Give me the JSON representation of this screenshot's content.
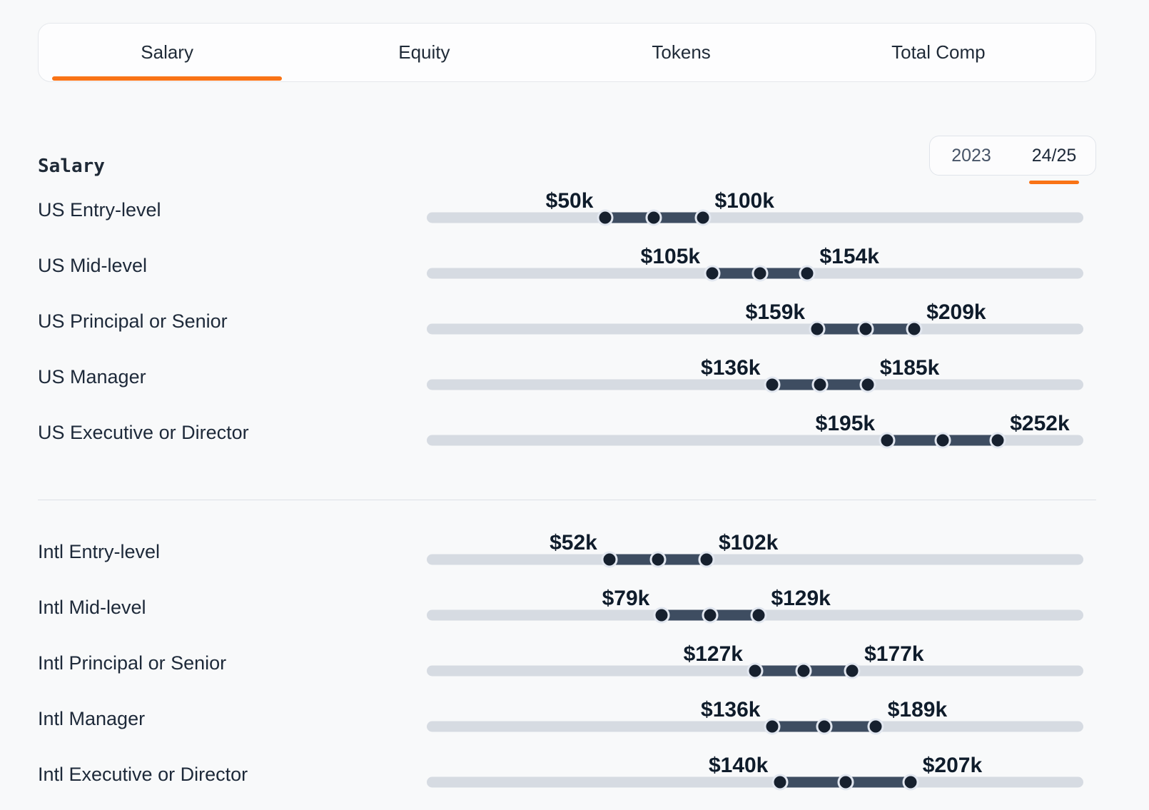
{
  "colors": {
    "accent": "#f97316"
  },
  "tabs": {
    "items": [
      {
        "label": "Salary",
        "active": true
      },
      {
        "label": "Equity",
        "active": false
      },
      {
        "label": "Tokens",
        "active": false
      },
      {
        "label": "Total Comp",
        "active": false
      }
    ]
  },
  "section": {
    "heading": "Salary"
  },
  "year_toggle": {
    "options": [
      {
        "label": "2023",
        "selected": false
      },
      {
        "label": "24/25",
        "selected": true
      }
    ]
  },
  "slider_axis": {
    "min": -42,
    "max": 296,
    "unit": "$k"
  },
  "chart_data": {
    "type": "table",
    "title": "Salary",
    "groups": [
      {
        "name": "US",
        "rows": [
          {
            "label": "US Entry-level",
            "min": 50,
            "max": 100,
            "min_label": "$50k",
            "max_label": "$100k"
          },
          {
            "label": "US Mid-level",
            "min": 105,
            "max": 154,
            "min_label": "$105k",
            "max_label": "$154k"
          },
          {
            "label": "US Principal or Senior",
            "min": 159,
            "max": 209,
            "min_label": "$159k",
            "max_label": "$209k"
          },
          {
            "label": "US Manager",
            "min": 136,
            "max": 185,
            "min_label": "$136k",
            "max_label": "$185k"
          },
          {
            "label": "US Executive or Director",
            "min": 195,
            "max": 252,
            "min_label": "$195k",
            "max_label": "$252k"
          }
        ]
      },
      {
        "name": "Intl",
        "rows": [
          {
            "label": "Intl Entry-level",
            "min": 52,
            "max": 102,
            "min_label": "$52k",
            "max_label": "$102k"
          },
          {
            "label": "Intl Mid-level",
            "min": 79,
            "max": 129,
            "min_label": "$79k",
            "max_label": "$129k"
          },
          {
            "label": "Intl Principal or Senior",
            "min": 127,
            "max": 177,
            "min_label": "$127k",
            "max_label": "$177k"
          },
          {
            "label": "Intl Manager",
            "min": 136,
            "max": 189,
            "min_label": "$136k",
            "max_label": "$189k"
          },
          {
            "label": "Intl Executive or Director",
            "min": 140,
            "max": 207,
            "min_label": "$140k",
            "max_label": "$207k"
          }
        ]
      }
    ]
  }
}
